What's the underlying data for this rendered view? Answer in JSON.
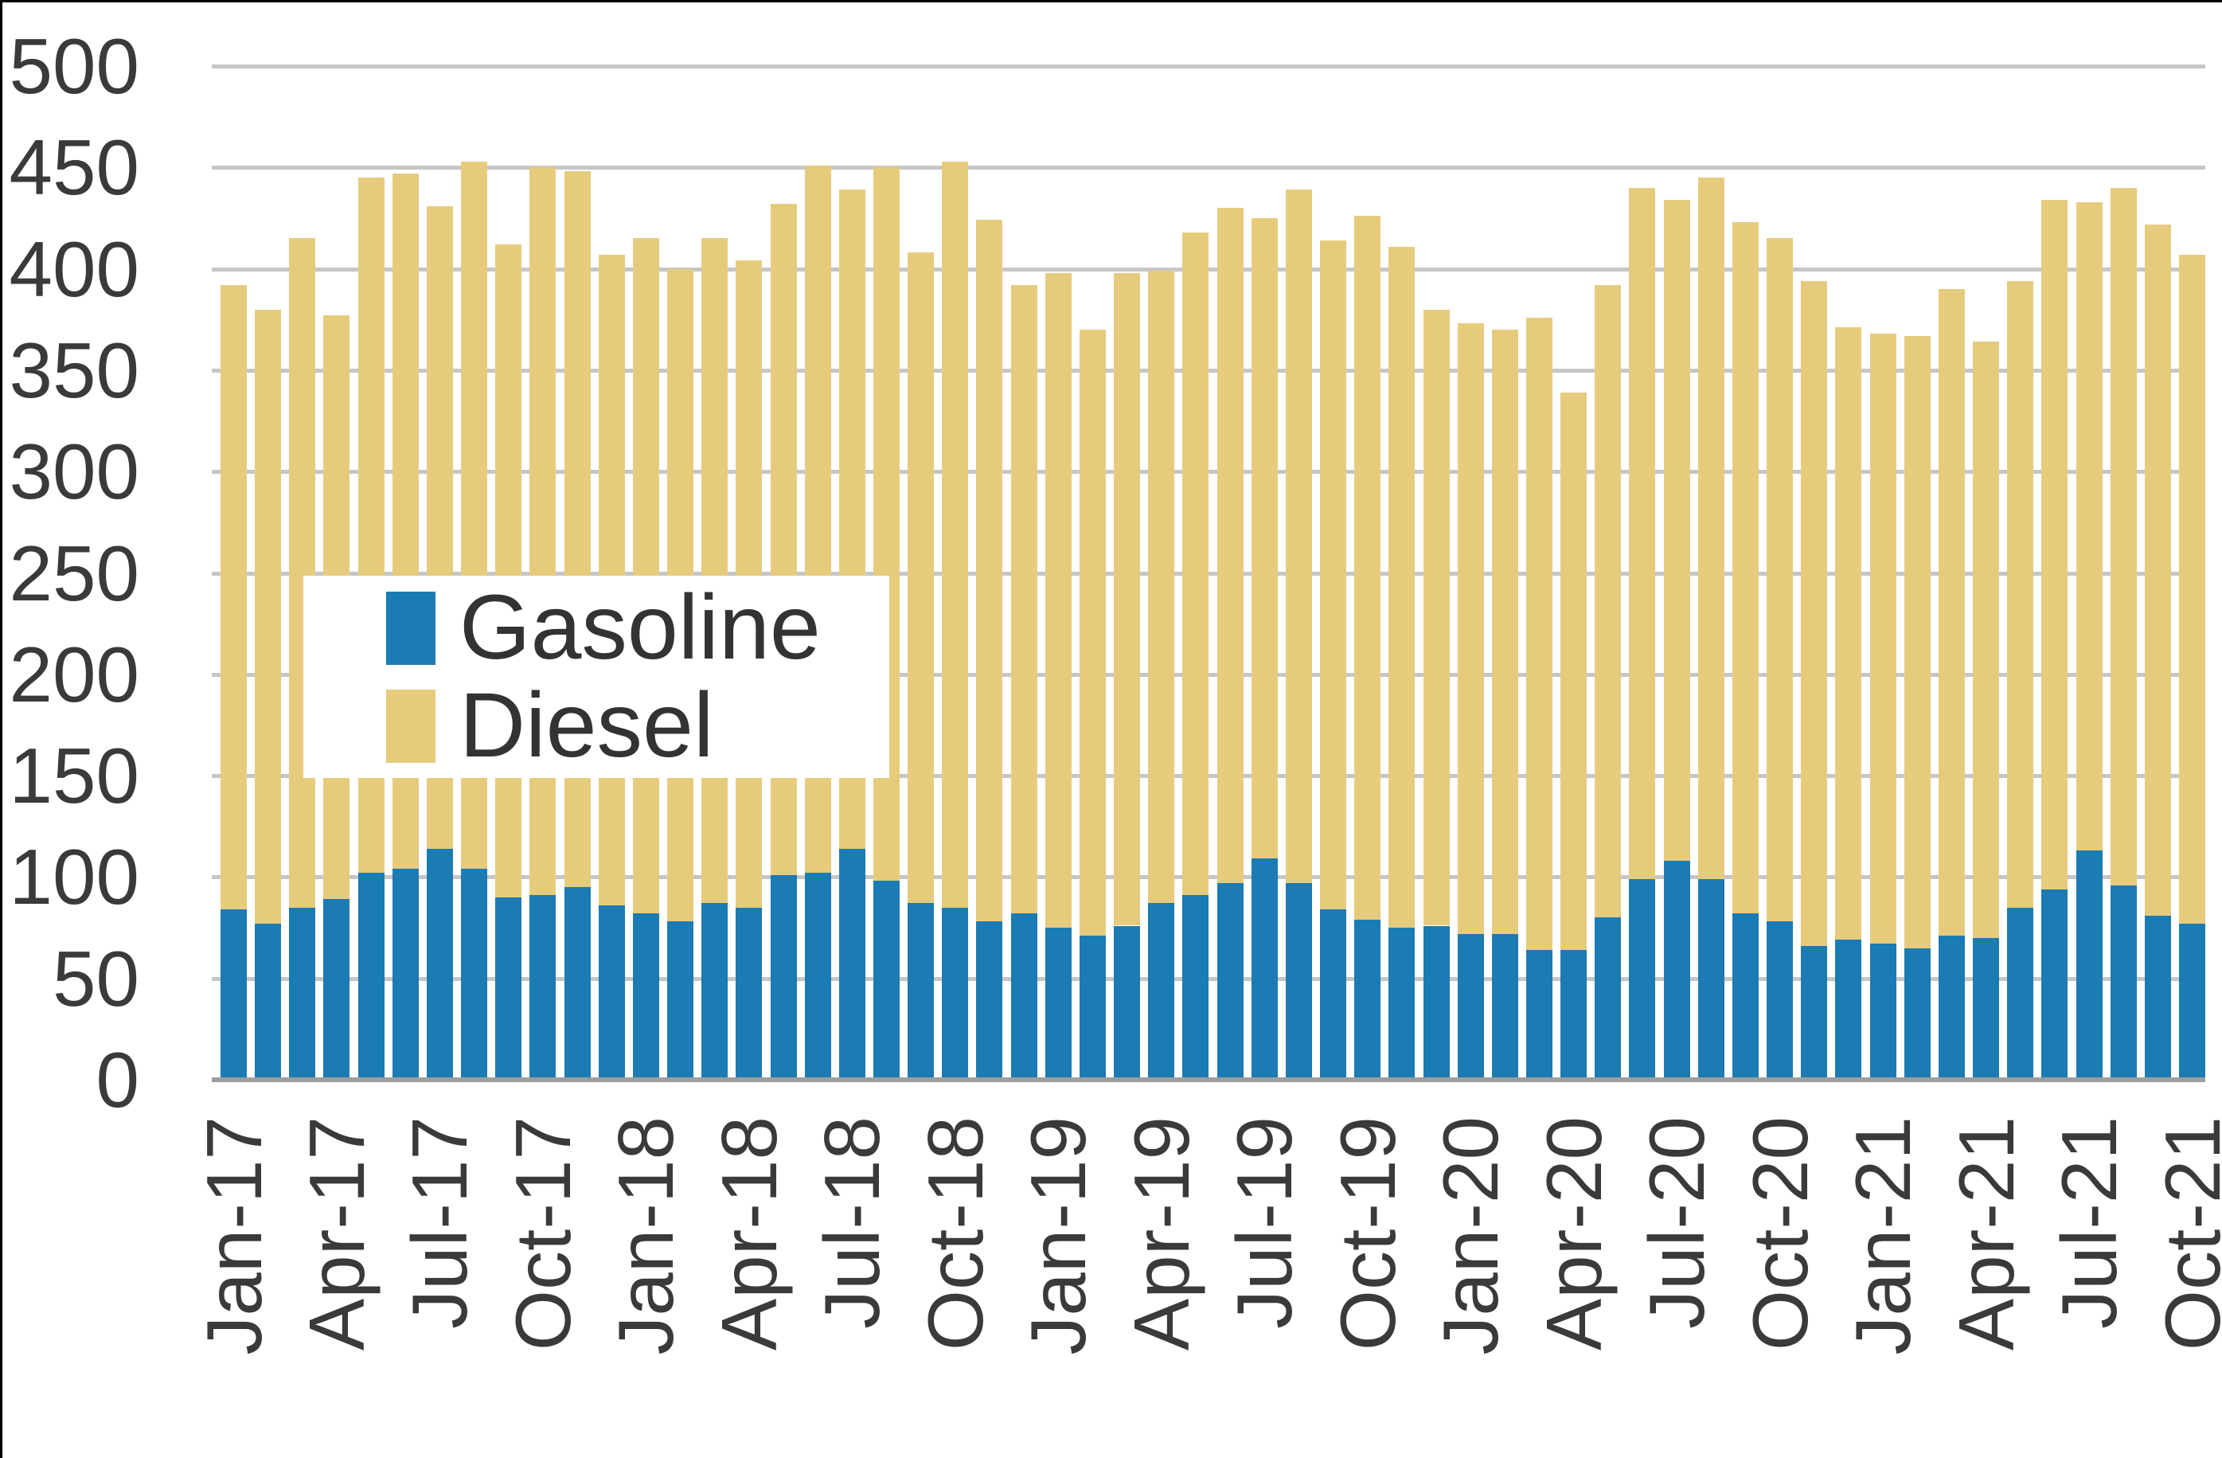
{
  "legend": {
    "items": [
      {
        "label": "Gasoline"
      },
      {
        "label": "Diesel"
      }
    ]
  },
  "colors": {
    "gasoline": "#1b7bb3",
    "diesel": "#e7cb7d",
    "gridline": "#c6c6c6",
    "axis_line": "#9e9e9e",
    "text": "#3a3a3a",
    "frame": "#000000"
  },
  "chart_data": {
    "type": "bar",
    "stacked": true,
    "title": "",
    "xlabel": "",
    "ylabel": "",
    "ylim": [
      0,
      500
    ],
    "grid": true,
    "y_ticks": [
      0,
      50,
      100,
      150,
      200,
      250,
      300,
      350,
      400,
      450,
      500
    ],
    "x_tick_labels": [
      "Jan-17",
      "Apr-17",
      "Jul-17",
      "Oct-17",
      "Jan-18",
      "Apr-18",
      "Jul-18",
      "Oct-18",
      "Jan-19",
      "Apr-19",
      "Jul-19",
      "Oct-19",
      "Jan-20",
      "Apr-20",
      "Jul-20",
      "Oct-20",
      "Jan-21",
      "Apr-21",
      "Jul-21",
      "Oct-21"
    ],
    "x_tick_every": 3,
    "legend_position": "inside-left-middle",
    "x": [
      "Jan-17",
      "Feb-17",
      "Mar-17",
      "Apr-17",
      "May-17",
      "Jun-17",
      "Jul-17",
      "Aug-17",
      "Sep-17",
      "Oct-17",
      "Nov-17",
      "Dec-17",
      "Jan-18",
      "Feb-18",
      "Mar-18",
      "Apr-18",
      "May-18",
      "Jun-18",
      "Jul-18",
      "Aug-18",
      "Sep-18",
      "Oct-18",
      "Nov-18",
      "Dec-18",
      "Jan-19",
      "Feb-19",
      "Mar-19",
      "Apr-19",
      "May-19",
      "Jun-19",
      "Jul-19",
      "Aug-19",
      "Sep-19",
      "Oct-19",
      "Nov-19",
      "Dec-19",
      "Jan-20",
      "Feb-20",
      "Mar-20",
      "Apr-20",
      "May-20",
      "Jun-20",
      "Jul-20",
      "Aug-20",
      "Sep-20",
      "Oct-20",
      "Nov-20",
      "Dec-20",
      "Jan-21",
      "Feb-21",
      "Mar-21",
      "Apr-21",
      "May-21",
      "Jun-21",
      "Jul-21",
      "Aug-21",
      "Sep-21",
      "Oct-21"
    ],
    "series": [
      {
        "name": "Gasoline",
        "color": "#1b7bb3",
        "values": [
          84,
          77,
          85,
          89,
          102,
          104,
          114,
          104,
          90,
          91,
          95,
          86,
          82,
          78,
          87,
          85,
          101,
          102,
          114,
          98,
          87,
          85,
          78,
          82,
          75,
          71,
          76,
          87,
          91,
          97,
          109,
          97,
          84,
          79,
          75,
          76,
          72,
          72,
          64,
          64,
          80,
          99,
          108,
          99,
          82,
          78,
          66,
          69,
          67,
          65,
          71,
          70,
          85,
          94,
          113,
          96,
          81,
          77
        ]
      },
      {
        "name": "Diesel",
        "color": "#e7cb7d",
        "values": [
          308,
          303,
          330,
          288,
          343,
          343,
          317,
          349,
          322,
          359,
          353,
          321,
          333,
          322,
          328,
          319,
          331,
          349,
          325,
          352,
          321,
          368,
          346,
          310,
          323,
          299,
          322,
          312,
          327,
          333,
          316,
          342,
          330,
          347,
          336,
          304,
          301,
          298,
          312,
          275,
          312,
          341,
          326,
          346,
          341,
          337,
          328,
          302,
          301,
          302,
          319,
          294,
          309,
          340,
          320,
          344,
          341,
          330
        ]
      }
    ]
  }
}
